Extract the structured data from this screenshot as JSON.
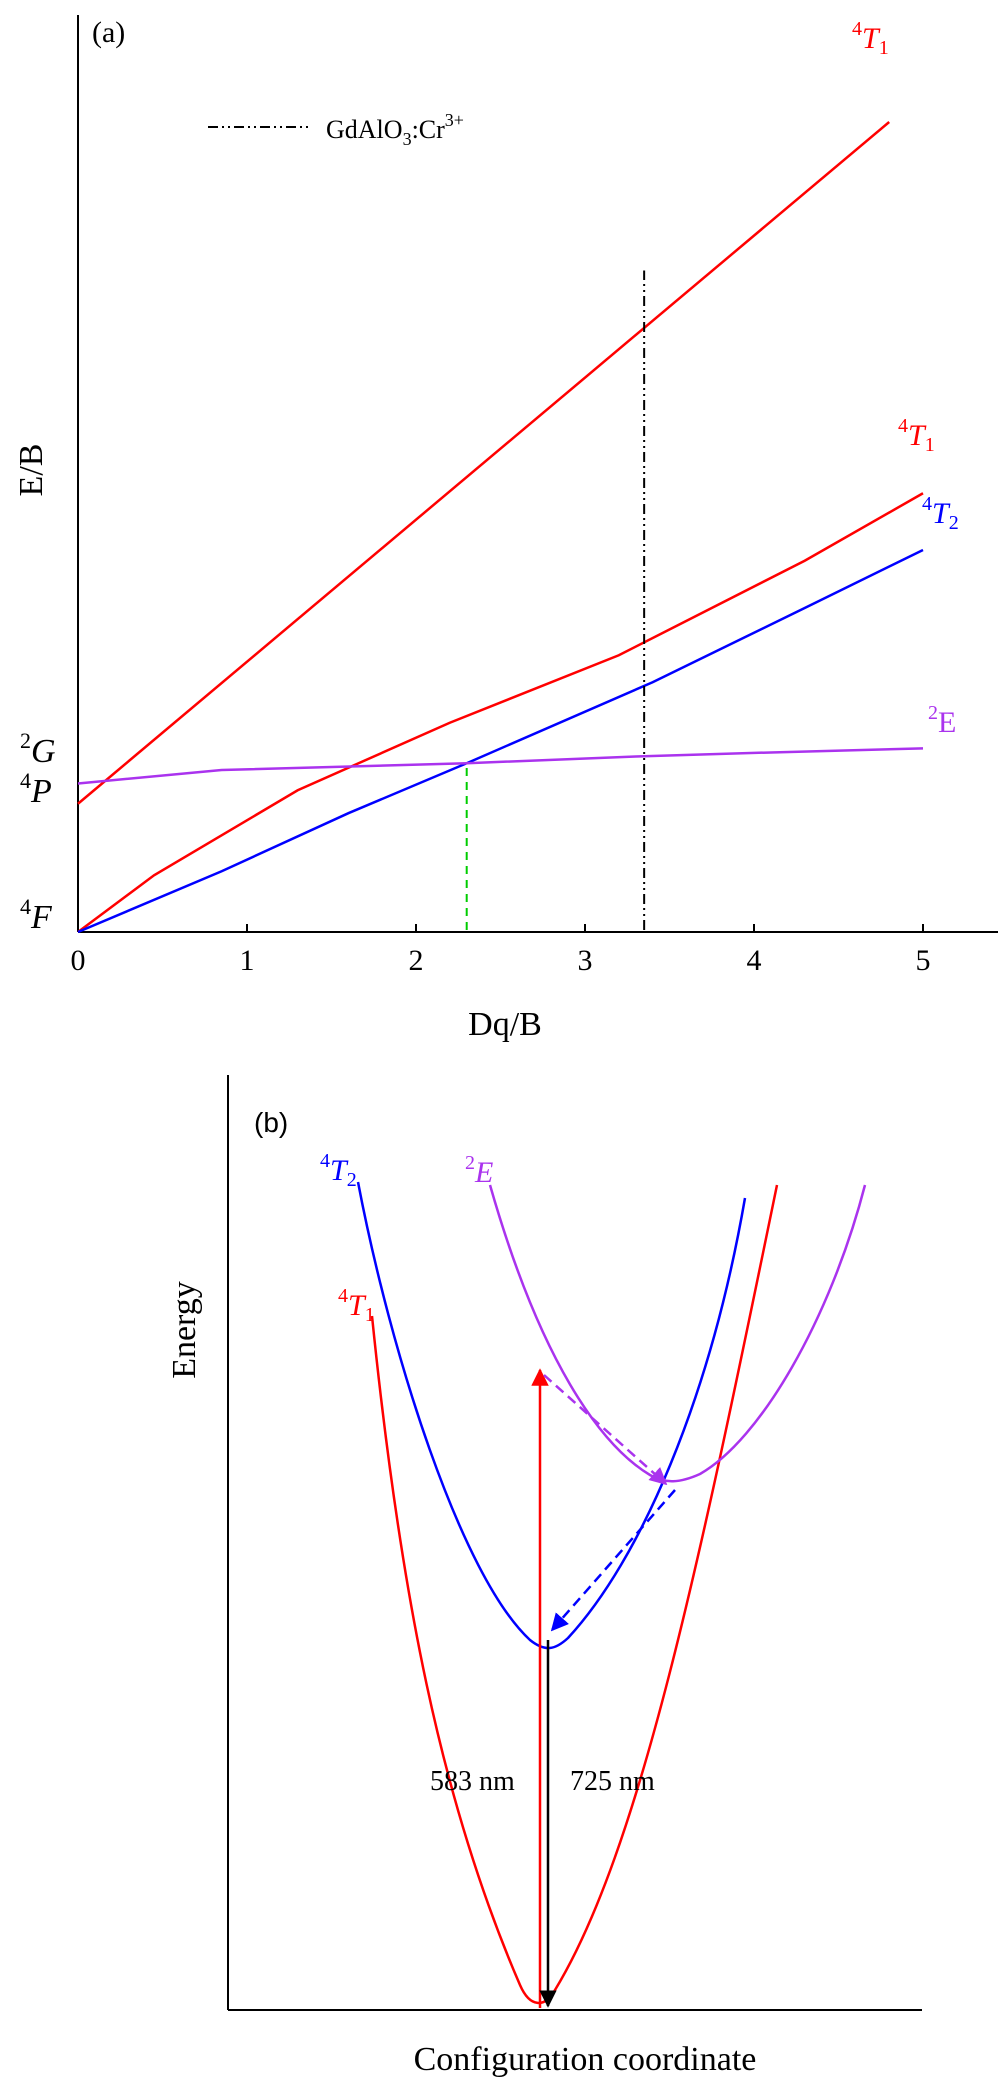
{
  "panel_a": {
    "tag": "(a)",
    "xlabel": "Dq/B",
    "ylabel": "E/B",
    "x_ticks": [
      "0",
      "1",
      "2",
      "3",
      "4",
      "5"
    ],
    "legend_label": "GdAlO",
    "legend_sub": "3",
    "legend_tail": ":Cr",
    "legend_sup": "3+",
    "left_labels": [
      {
        "sup": "2",
        "main": "G"
      },
      {
        "sup": "4",
        "main": "P"
      },
      {
        "sup": "4",
        "main": "F"
      }
    ],
    "curve_labels": [
      {
        "sup": "4",
        "main": "T",
        "sub": "1",
        "color": "#ff0000"
      },
      {
        "sup": "4",
        "main": "T",
        "sub": "1",
        "color": "#ff0000"
      },
      {
        "sup": "4",
        "main": "T",
        "sub": "2",
        "color": "#0000ff"
      },
      {
        "sup": "2",
        "main": "E",
        "sub": "",
        "color": "#aa33ee"
      }
    ],
    "colors": {
      "t1": "#ff0000",
      "t2": "#0000ff",
      "e": "#aa33ee",
      "guide": "#00cc00",
      "marker": "#000000"
    }
  },
  "chart_data": {
    "type": "line",
    "xlabel": "Dq/B",
    "ylabel": "E/B",
    "xlim": [
      0,
      5.5
    ],
    "series": [
      {
        "name": "4T1 (upper)",
        "x": [
          0,
          4.8
        ],
        "y": [
          0.95,
          6.0
        ]
      },
      {
        "name": "4T1 (lower)",
        "x": [
          0,
          0.45,
          1.3,
          2.2,
          3.2,
          4.3,
          5.0
        ],
        "y": [
          0.0,
          0.42,
          1.05,
          1.55,
          2.05,
          2.75,
          3.25
        ]
      },
      {
        "name": "4T2",
        "x": [
          0,
          0.85,
          1.6,
          2.3,
          3.4,
          4.3,
          5.0
        ],
        "y": [
          0.0,
          0.45,
          0.88,
          1.25,
          1.85,
          2.4,
          2.83
        ]
      },
      {
        "name": "2E",
        "x": [
          0,
          0.85,
          2.3,
          3.3,
          4.1,
          5.0
        ],
        "y": [
          1.1,
          1.2,
          1.25,
          1.3,
          1.33,
          1.36
        ]
      }
    ],
    "markers": [
      {
        "name": "GdAlO3:Cr3+",
        "x": 3.35
      },
      {
        "name": "crossover",
        "x": 2.3
      }
    ]
  },
  "panel_b": {
    "tag": "(b)",
    "xlabel": "Configuration coordinate",
    "ylabel": "Energy",
    "label_583": "583 nm",
    "label_725": "725 nm",
    "curve_labels": [
      {
        "sup": "2",
        "main": "E",
        "sub": "",
        "color": "#aa33ee"
      },
      {
        "sup": "4",
        "main": "T",
        "sub": "2",
        "color": "#0000ff"
      },
      {
        "sup": "4",
        "main": "T",
        "sub": "1",
        "color": "#ff0000"
      }
    ]
  }
}
